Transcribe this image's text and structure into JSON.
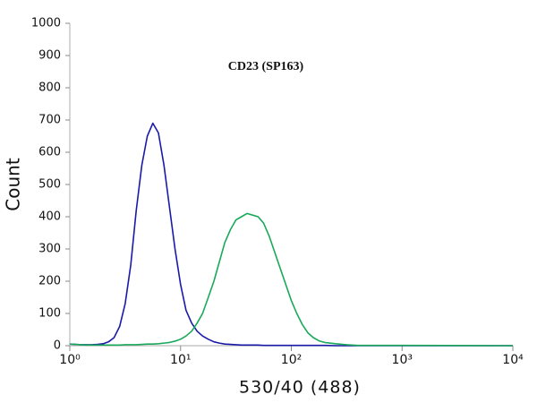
{
  "chart_data": {
    "type": "line",
    "title": "CD23 (SP163)",
    "xlabel": "530/40 (488)",
    "ylabel": "Count",
    "xscale": "log",
    "xlim": [
      1,
      10000
    ],
    "ylim": [
      0,
      1000
    ],
    "xticks": [
      {
        "value": 1,
        "label": "10⁰"
      },
      {
        "value": 10,
        "label": "10¹"
      },
      {
        "value": 100,
        "label": "10²"
      },
      {
        "value": 1000,
        "label": "10³"
      },
      {
        "value": 10000,
        "label": "10⁴"
      }
    ],
    "yticks": [
      0,
      100,
      200,
      300,
      400,
      500,
      600,
      700,
      800,
      900,
      1000
    ],
    "grid": false,
    "x": [
      1,
      1.12,
      1.26,
      1.41,
      1.58,
      1.78,
      2,
      2.24,
      2.51,
      2.82,
      3.16,
      3.55,
      3.98,
      4.47,
      5.01,
      5.62,
      6.31,
      7.08,
      7.94,
      8.91,
      10,
      11.2,
      12.6,
      14.1,
      15.8,
      17.8,
      20,
      22.4,
      25.1,
      28.2,
      31.6,
      35.5,
      39.8,
      44.7,
      50.1,
      56.2,
      63.1,
      70.8,
      79.4,
      89.1,
      100,
      112,
      126,
      141,
      158,
      178,
      200,
      251,
      316,
      398,
      1000,
      10000
    ],
    "series": [
      {
        "color": "#1a1aa8",
        "values": [
          5,
          4,
          3,
          3,
          3,
          4,
          6,
          12,
          25,
          60,
          130,
          250,
          420,
          560,
          650,
          690,
          660,
          560,
          430,
          300,
          190,
          110,
          70,
          45,
          30,
          20,
          12,
          8,
          5,
          4,
          3,
          2,
          2,
          2,
          2,
          1,
          1,
          1,
          1,
          1,
          1,
          1,
          1,
          1,
          1,
          1,
          1,
          0,
          0,
          0,
          0,
          0
        ]
      },
      {
        "color": "#1aa85a",
        "values": [
          5,
          4,
          3,
          2,
          2,
          2,
          2,
          2,
          2,
          2,
          3,
          3,
          3,
          4,
          5,
          5,
          6,
          8,
          10,
          14,
          20,
          30,
          45,
          70,
          100,
          150,
          200,
          260,
          320,
          360,
          390,
          400,
          410,
          405,
          400,
          380,
          340,
          290,
          240,
          190,
          140,
          100,
          65,
          40,
          25,
          15,
          10,
          6,
          3,
          1,
          1,
          0
        ]
      }
    ]
  }
}
